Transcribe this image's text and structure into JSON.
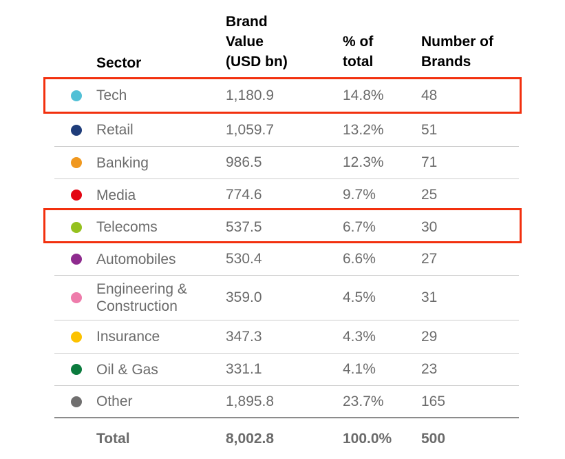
{
  "table": {
    "header": {
      "sector": "Sector",
      "brand_value": "Brand\nValue\n(USD bn)",
      "pct": "% of\ntotal",
      "brands": "Number of\nBrands"
    },
    "rows": [
      {
        "sector": "Tech",
        "dot_color": "#52c0d6",
        "brand_value": "1,180.9",
        "pct": "14.8%",
        "brands": "48",
        "highlighted": true
      },
      {
        "sector": "Retail",
        "dot_color": "#1f3d7a",
        "brand_value": "1,059.7",
        "pct": "13.2%",
        "brands": "51",
        "highlighted": false
      },
      {
        "sector": "Banking",
        "dot_color": "#f0981f",
        "brand_value": "986.5",
        "pct": "12.3%",
        "brands": "71",
        "highlighted": false
      },
      {
        "sector": "Media",
        "dot_color": "#e30613",
        "brand_value": "774.6",
        "pct": "9.7%",
        "brands": "25",
        "highlighted": false
      },
      {
        "sector": "Telecoms",
        "dot_color": "#95c11f",
        "brand_value": "537.5",
        "pct": "6.7%",
        "brands": "30",
        "highlighted": true
      },
      {
        "sector": "Automobiles",
        "dot_color": "#8e2b8e",
        "brand_value": "530.4",
        "pct": "6.6%",
        "brands": "27",
        "highlighted": false
      },
      {
        "sector": "Engineering & Construction",
        "dot_color": "#ee7cab",
        "brand_value": "359.0",
        "pct": "4.5%",
        "brands": "31",
        "highlighted": false
      },
      {
        "sector": "Insurance",
        "dot_color": "#fcc200",
        "brand_value": "347.3",
        "pct": "4.3%",
        "brands": "29",
        "highlighted": false
      },
      {
        "sector": "Oil & Gas",
        "dot_color": "#0b7b3e",
        "brand_value": "331.1",
        "pct": "4.1%",
        "brands": "23",
        "highlighted": false
      },
      {
        "sector": "Other",
        "dot_color": "#706f6f",
        "brand_value": "1,895.8",
        "pct": "23.7%",
        "brands": "165",
        "highlighted": false
      }
    ],
    "total": {
      "label": "Total",
      "brand_value": "8,002.8",
      "pct": "100.0%",
      "brands": "500"
    }
  },
  "colors": {
    "highlight_border": "#f2300e",
    "row_divider": "#cccccc",
    "total_divider": "#8c8c8c",
    "header_text": "#000000",
    "body_text": "#6b6b6b"
  },
  "chart_data": {
    "type": "table",
    "title": "",
    "columns": [
      "Sector",
      "Brand Value (USD bn)",
      "% of total",
      "Number of Brands"
    ],
    "rows": [
      [
        "Tech",
        1180.9,
        14.8,
        48
      ],
      [
        "Retail",
        1059.7,
        13.2,
        51
      ],
      [
        "Banking",
        986.5,
        12.3,
        71
      ],
      [
        "Media",
        774.6,
        9.7,
        25
      ],
      [
        "Telecoms",
        537.5,
        6.7,
        30
      ],
      [
        "Automobiles",
        530.4,
        6.6,
        27
      ],
      [
        "Engineering & Construction",
        359.0,
        4.5,
        31
      ],
      [
        "Insurance",
        347.3,
        4.3,
        29
      ],
      [
        "Oil & Gas",
        331.1,
        4.1,
        23
      ],
      [
        "Other",
        1895.8,
        23.7,
        165
      ]
    ],
    "total_row": [
      "Total",
      8002.8,
      100.0,
      500
    ],
    "highlighted_rows": [
      "Tech",
      "Telecoms"
    ],
    "legend_colors": {
      "Tech": "#52c0d6",
      "Retail": "#1f3d7a",
      "Banking": "#f0981f",
      "Media": "#e30613",
      "Telecoms": "#95c11f",
      "Automobiles": "#8e2b8e",
      "Engineering & Construction": "#ee7cab",
      "Insurance": "#fcc200",
      "Oil & Gas": "#0b7b3e",
      "Other": "#706f6f"
    }
  }
}
